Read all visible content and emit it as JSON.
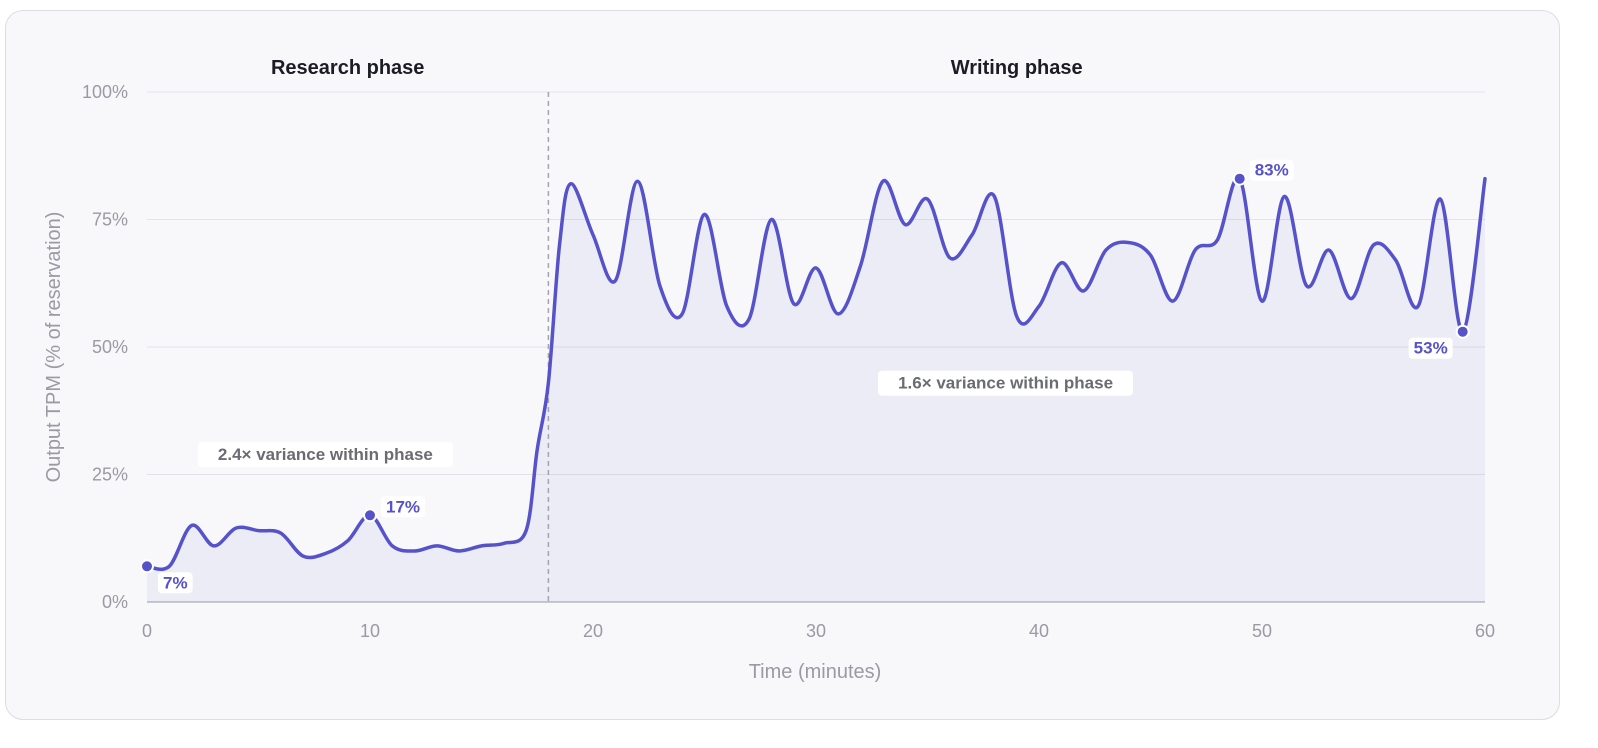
{
  "chart_data": {
    "type": "line",
    "xlabel": "Time (minutes)",
    "ylabel": "Output TPM (% of reservation)",
    "xlim": [
      0,
      60
    ],
    "ylim": [
      0,
      100
    ],
    "x_ticks": [
      "0",
      "10",
      "20",
      "30",
      "40",
      "50",
      "60"
    ],
    "x_tick_values": [
      0,
      10,
      20,
      30,
      40,
      50,
      60
    ],
    "y_ticks": [
      "0%",
      "25%",
      "50%",
      "75%",
      "100%"
    ],
    "y_tick_values": [
      0,
      25,
      50,
      75,
      100
    ],
    "grid": "horizontal",
    "phases": [
      {
        "title": "Research phase",
        "x_start": 0,
        "x_end": 18
      },
      {
        "title": "Writing phase",
        "x_start": 18,
        "x_end": 60
      }
    ],
    "phase_divider_x": 18,
    "series": [
      {
        "color": "#5652c9",
        "x": [
          0,
          1,
          2,
          3,
          4,
          5,
          6,
          7,
          8,
          9,
          10,
          11,
          12,
          13,
          14,
          15,
          16,
          17,
          17.5,
          18,
          18.5,
          19,
          20,
          21,
          22,
          23,
          24,
          25,
          26,
          27,
          28,
          29,
          30,
          31,
          32,
          33,
          34,
          35,
          36,
          37,
          38,
          39,
          40,
          41,
          42,
          43,
          44,
          45,
          46,
          47,
          48,
          49,
          50,
          51,
          52,
          53,
          54,
          55,
          56,
          57,
          58,
          59,
          60
        ],
        "values": [
          7,
          7,
          15,
          11,
          14.5,
          14,
          13.5,
          9,
          9.5,
          12,
          17,
          11,
          10,
          11,
          10,
          11,
          11.5,
          14,
          30,
          43,
          70,
          82,
          72,
          63,
          82.5,
          62,
          56.5,
          76,
          58,
          55.5,
          75,
          58.5,
          65.5,
          56.5,
          66,
          82.5,
          74,
          79,
          67.5,
          72,
          79.5,
          56,
          58,
          66.5,
          61,
          69,
          70.5,
          68,
          59,
          69,
          71,
          83,
          59,
          79.5,
          62,
          69,
          59.5,
          70,
          67,
          58,
          79,
          53,
          83
        ]
      }
    ],
    "annotations": [
      {
        "x": 0,
        "y": 7,
        "label": "7%"
      },
      {
        "x": 10,
        "y": 17,
        "label": "17%"
      },
      {
        "x": 49,
        "y": 83,
        "label": "83%"
      },
      {
        "x": 59,
        "y": 53,
        "label": "53%"
      }
    ],
    "notes": [
      {
        "text": "2.4× variance within phase",
        "x": 8,
        "y": 29
      },
      {
        "text": "1.6× variance within phase",
        "x": 38.5,
        "y": 43
      }
    ]
  }
}
